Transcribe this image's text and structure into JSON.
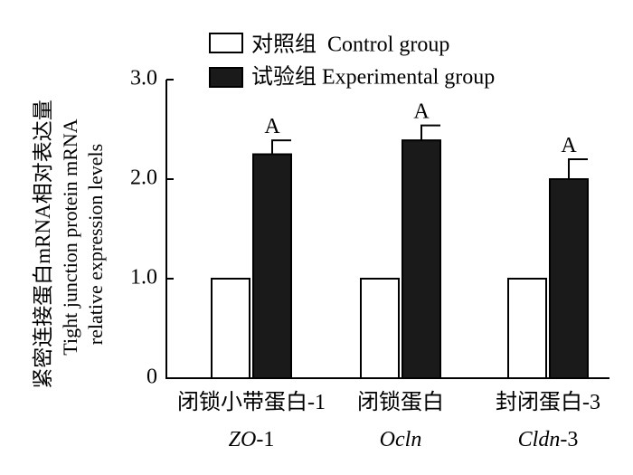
{
  "chart_data": {
    "type": "bar",
    "title": "",
    "ylabel_cn": "紧密连接蛋白mRNA相对表达量",
    "ylabel_en_line1": "Tight junction protein mRNA",
    "ylabel_en_line2": "relative expression levels",
    "ylim": [
      0,
      3.0
    ],
    "yticks": [
      "0",
      "1.0",
      "2.0",
      "3.0"
    ],
    "ytick_values": [
      0,
      1.0,
      2.0,
      3.0
    ],
    "categories": [
      {
        "cn": "闭锁小带蛋白-1",
        "gene_italic": "ZO",
        "gene_suffix": "-1"
      },
      {
        "cn": "闭锁蛋白",
        "gene_italic": "Ocln",
        "gene_suffix": ""
      },
      {
        "cn": "封闭蛋白-3",
        "gene_italic": "Cldn",
        "gene_suffix": "-3"
      }
    ],
    "series": [
      {
        "name": "对照组  Control group",
        "fill": "#ffffff",
        "values": [
          1.0,
          1.0,
          1.0
        ],
        "errors": [
          0,
          0,
          0
        ],
        "labels": [
          "",
          "",
          ""
        ]
      },
      {
        "name": "试验组 Experimental group",
        "fill": "#1a1a1a",
        "values": [
          2.25,
          2.39,
          2.0
        ],
        "errors": [
          0.14,
          0.15,
          0.2
        ],
        "labels": [
          "A",
          "A",
          "A"
        ]
      }
    ]
  }
}
